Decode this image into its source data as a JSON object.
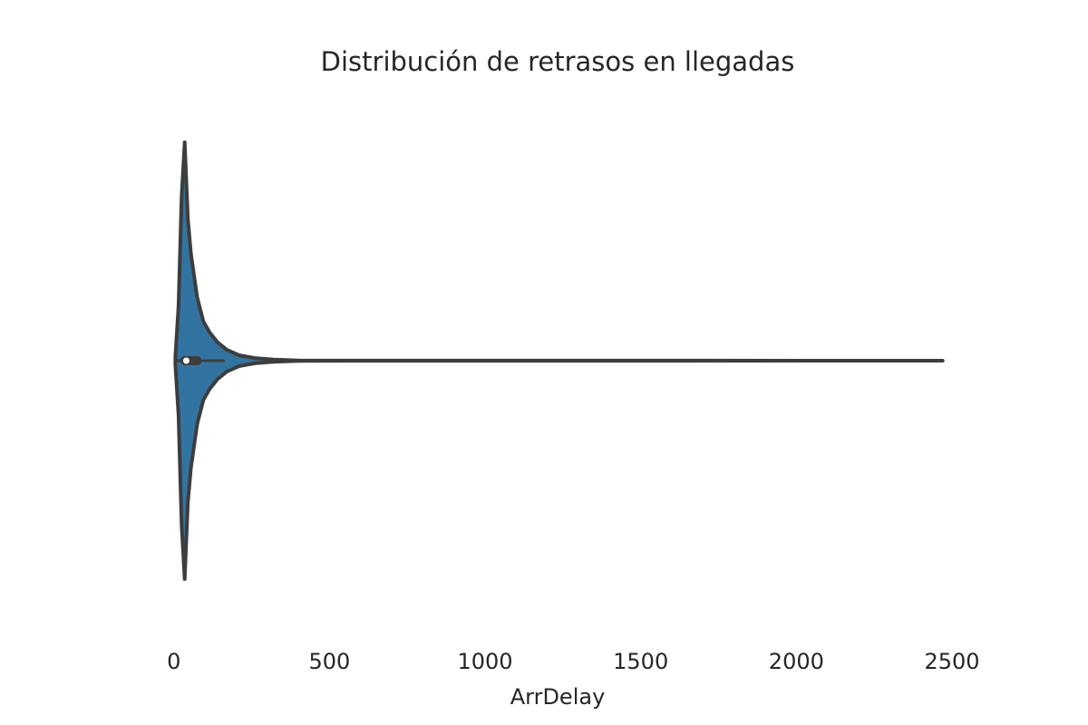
{
  "chart_data": {
    "type": "violin",
    "title": "Distribución de retrasos en llegadas",
    "xlabel": "ArrDelay",
    "ylabel": "",
    "xlim": [
      -5,
      2500
    ],
    "x_ticks": [
      0,
      500,
      1000,
      1500,
      2000,
      2500
    ],
    "x_tick_labels": [
      "0",
      "500",
      "1000",
      "1500",
      "2000",
      "2500"
    ],
    "grid": false,
    "orientation": "horizontal",
    "colors": {
      "fill": "#3274a1",
      "outline": "#3d3d3d",
      "median": "#ffffff"
    },
    "density_profile": [
      {
        "x": 5,
        "d": 0.02
      },
      {
        "x": 15,
        "d": 0.25
      },
      {
        "x": 25,
        "d": 0.75
      },
      {
        "x": 35,
        "d": 1.0
      },
      {
        "x": 45,
        "d": 0.65
      },
      {
        "x": 55,
        "d": 0.49
      },
      {
        "x": 75,
        "d": 0.29
      },
      {
        "x": 95,
        "d": 0.18
      },
      {
        "x": 115,
        "d": 0.13
      },
      {
        "x": 140,
        "d": 0.085
      },
      {
        "x": 170,
        "d": 0.05
      },
      {
        "x": 210,
        "d": 0.025
      },
      {
        "x": 260,
        "d": 0.012
      },
      {
        "x": 320,
        "d": 0.005
      },
      {
        "x": 400,
        "d": 0.001
      },
      {
        "x": 2470,
        "d": 0.0
      }
    ],
    "box": {
      "min": 5,
      "q1": 22,
      "median": 40,
      "q3": 88,
      "whisker_high": 160,
      "max": 2470
    }
  }
}
